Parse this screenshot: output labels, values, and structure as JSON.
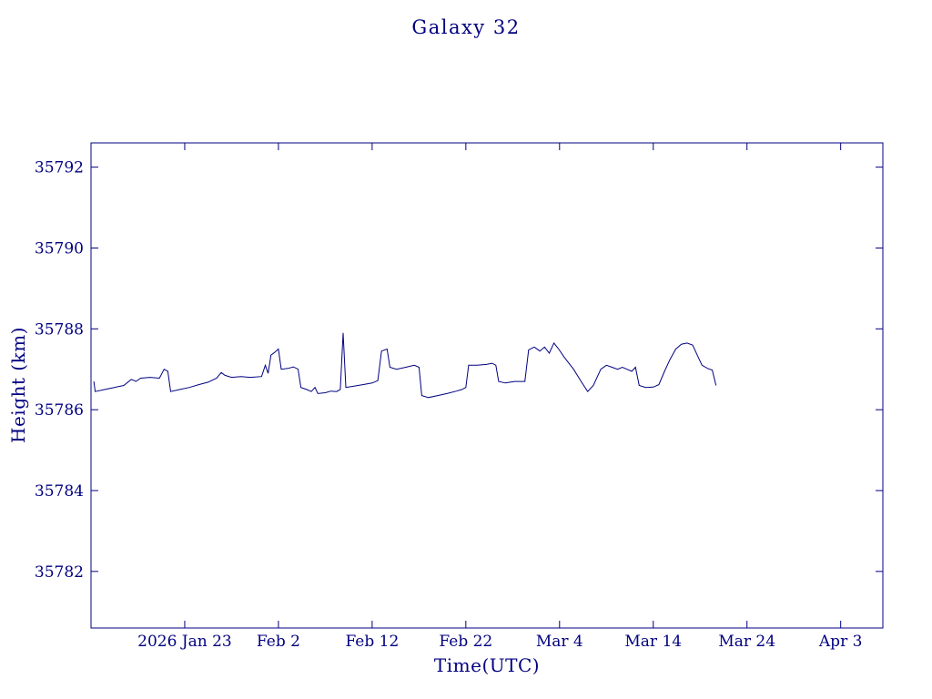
{
  "page": {
    "background": "#ffffff"
  },
  "colors": {
    "ink": "#000080",
    "line": "#000080"
  },
  "chart_data": {
    "type": "line",
    "title": "Galaxy 32",
    "xlabel": "Time(UTC)",
    "ylabel": "Height (km)",
    "x_units": "days, 0 = left edge (approx 2026 Jan 13)",
    "xlim": [
      0,
      84.5
    ],
    "ylim": [
      35780.6,
      35792.6
    ],
    "grid": false,
    "legend": "none",
    "x_ticks": [
      {
        "pos": 10,
        "label": "2026 Jan 23"
      },
      {
        "pos": 20,
        "label": "Feb 2"
      },
      {
        "pos": 30,
        "label": "Feb 12"
      },
      {
        "pos": 40,
        "label": "Feb 22"
      },
      {
        "pos": 50,
        "label": "Mar 4"
      },
      {
        "pos": 60,
        "label": "Mar 14"
      },
      {
        "pos": 70,
        "label": "Mar 24"
      },
      {
        "pos": 80,
        "label": "Apr 3"
      }
    ],
    "y_ticks": [
      {
        "pos": 35782,
        "label": "35782"
      },
      {
        "pos": 35784,
        "label": "35784"
      },
      {
        "pos": 35786,
        "label": "35786"
      },
      {
        "pos": 35788,
        "label": "35788"
      },
      {
        "pos": 35790,
        "label": "35790"
      },
      {
        "pos": 35792,
        "label": "35792"
      }
    ],
    "series": [
      {
        "name": "Galaxy 32 height",
        "color": "#000080",
        "points": [
          [
            0.3,
            35786.7
          ],
          [
            0.45,
            35786.45
          ],
          [
            1.5,
            35786.5
          ],
          [
            2.5,
            35786.55
          ],
          [
            3.5,
            35786.6
          ],
          [
            4.3,
            35786.75
          ],
          [
            4.8,
            35786.7
          ],
          [
            5.3,
            35786.78
          ],
          [
            6.3,
            35786.8
          ],
          [
            7.3,
            35786.78
          ],
          [
            7.8,
            35787.0
          ],
          [
            8.2,
            35786.95
          ],
          [
            8.5,
            35786.45
          ],
          [
            9.5,
            35786.5
          ],
          [
            10.5,
            35786.55
          ],
          [
            11.5,
            35786.62
          ],
          [
            12.5,
            35786.68
          ],
          [
            13.4,
            35786.78
          ],
          [
            13.9,
            35786.92
          ],
          [
            14.3,
            35786.85
          ],
          [
            15.0,
            35786.8
          ],
          [
            16.0,
            35786.82
          ],
          [
            17.0,
            35786.8
          ],
          [
            18.2,
            35786.82
          ],
          [
            18.6,
            35787.1
          ],
          [
            18.9,
            35786.9
          ],
          [
            19.2,
            35787.35
          ],
          [
            19.6,
            35787.42
          ],
          [
            20.0,
            35787.5
          ],
          [
            20.3,
            35787.0
          ],
          [
            21.0,
            35787.02
          ],
          [
            21.6,
            35787.06
          ],
          [
            22.1,
            35787.0
          ],
          [
            22.4,
            35786.55
          ],
          [
            23.0,
            35786.5
          ],
          [
            23.5,
            35786.45
          ],
          [
            23.9,
            35786.55
          ],
          [
            24.2,
            35786.4
          ],
          [
            25.0,
            35786.42
          ],
          [
            25.6,
            35786.46
          ],
          [
            26.2,
            35786.45
          ],
          [
            26.6,
            35786.5
          ],
          [
            26.9,
            35787.9
          ],
          [
            27.2,
            35786.55
          ],
          [
            28.0,
            35786.58
          ],
          [
            29.0,
            35786.62
          ],
          [
            30.0,
            35786.66
          ],
          [
            30.6,
            35786.72
          ],
          [
            31.0,
            35787.45
          ],
          [
            31.6,
            35787.5
          ],
          [
            31.9,
            35787.05
          ],
          [
            32.6,
            35787.0
          ],
          [
            33.6,
            35787.05
          ],
          [
            34.5,
            35787.1
          ],
          [
            35.0,
            35787.05
          ],
          [
            35.3,
            35786.35
          ],
          [
            36.0,
            35786.3
          ],
          [
            37.0,
            35786.35
          ],
          [
            38.0,
            35786.4
          ],
          [
            39.0,
            35786.46
          ],
          [
            39.6,
            35786.5
          ],
          [
            40.0,
            35786.55
          ],
          [
            40.3,
            35787.1
          ],
          [
            41.2,
            35787.1
          ],
          [
            42.2,
            35787.12
          ],
          [
            42.8,
            35787.15
          ],
          [
            43.2,
            35787.1
          ],
          [
            43.5,
            35786.7
          ],
          [
            44.2,
            35786.66
          ],
          [
            45.2,
            35786.7
          ],
          [
            46.3,
            35786.7
          ],
          [
            46.7,
            35787.48
          ],
          [
            47.3,
            35787.55
          ],
          [
            47.9,
            35787.45
          ],
          [
            48.4,
            35787.55
          ],
          [
            48.9,
            35787.4
          ],
          [
            49.4,
            35787.65
          ],
          [
            49.9,
            35787.5
          ],
          [
            50.5,
            35787.3
          ],
          [
            51.5,
            35787.0
          ],
          [
            52.3,
            35786.7
          ],
          [
            53.0,
            35786.45
          ],
          [
            53.6,
            35786.6
          ],
          [
            54.4,
            35787.0
          ],
          [
            55.0,
            35787.1
          ],
          [
            55.6,
            35787.05
          ],
          [
            56.2,
            35787.0
          ],
          [
            56.7,
            35787.05
          ],
          [
            57.2,
            35787.0
          ],
          [
            57.7,
            35786.95
          ],
          [
            58.1,
            35787.05
          ],
          [
            58.5,
            35786.6
          ],
          [
            59.2,
            35786.55
          ],
          [
            60.0,
            35786.56
          ],
          [
            60.6,
            35786.62
          ],
          [
            61.2,
            35786.95
          ],
          [
            61.8,
            35787.25
          ],
          [
            62.4,
            35787.5
          ],
          [
            63.0,
            35787.62
          ],
          [
            63.6,
            35787.65
          ],
          [
            64.2,
            35787.6
          ],
          [
            64.7,
            35787.35
          ],
          [
            65.2,
            35787.1
          ],
          [
            65.8,
            35787.02
          ],
          [
            66.3,
            35786.98
          ],
          [
            66.7,
            35786.6
          ]
        ]
      }
    ]
  }
}
